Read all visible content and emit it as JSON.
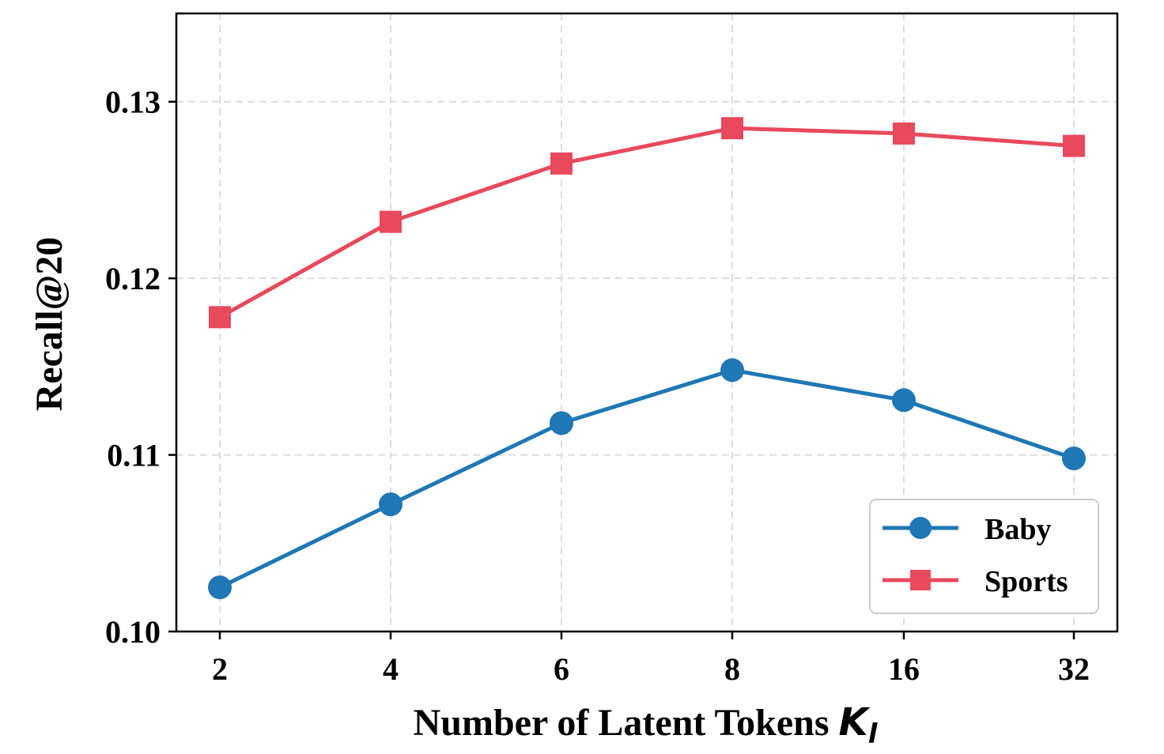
{
  "chart_data": {
    "type": "line",
    "categories": [
      "2",
      "4",
      "6",
      "8",
      "16",
      "32"
    ],
    "series": [
      {
        "name": "Baby",
        "values": [
          0.1025,
          0.1072,
          0.1118,
          0.1148,
          0.1131,
          0.1098
        ],
        "color": "#1f77b4",
        "marker": "circle"
      },
      {
        "name": "Sports",
        "values": [
          0.1178,
          0.1232,
          0.1265,
          0.1285,
          0.1282,
          0.1275
        ],
        "color": "#e8495c",
        "marker": "square"
      }
    ],
    "xlabel": {
      "text": "Number of Latent Tokens ",
      "symbol": "K",
      "subscript": "l"
    },
    "ylabel": "Recall@20",
    "ylim": [
      0.1,
      0.135
    ],
    "yticks": [
      "0.10",
      "0.11",
      "0.12",
      "0.13"
    ],
    "grid": true,
    "legend_position": "bottom-right"
  }
}
